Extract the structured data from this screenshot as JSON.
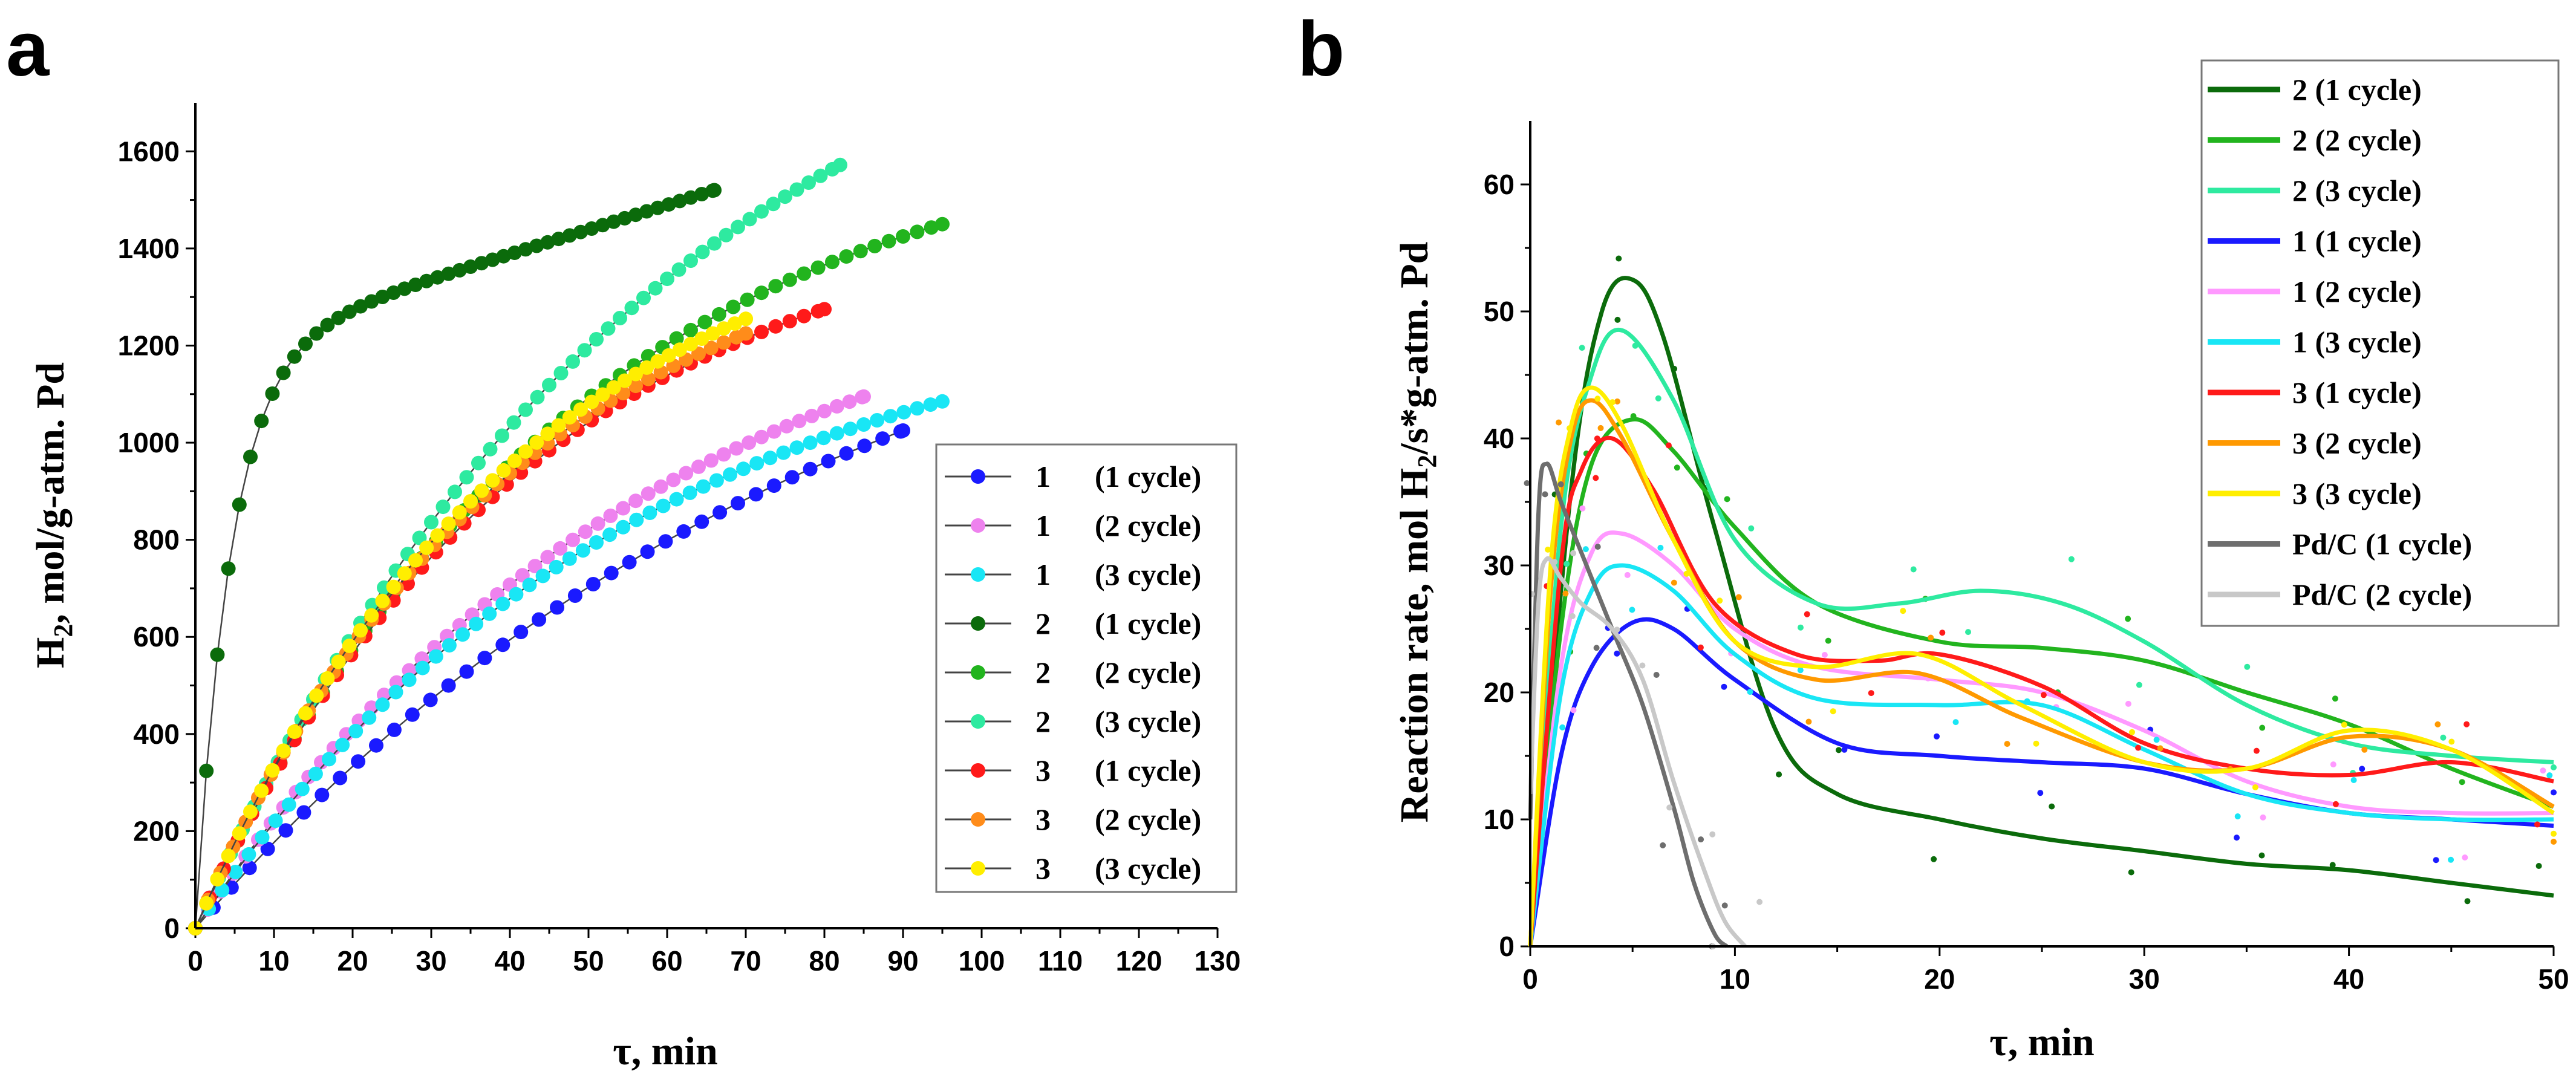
{
  "chart_data": [
    {
      "panel": "a",
      "type": "scatter",
      "xlabel": "τ, min",
      "ylabel_main": "H",
      "ylabel_sub": "2",
      "ylabel_rest": ", mol/g-atm. Pd",
      "xlim": [
        0,
        130
      ],
      "ylim": [
        0,
        1700
      ],
      "xticks": [
        0,
        10,
        20,
        30,
        40,
        50,
        60,
        70,
        80,
        90,
        100,
        110,
        120,
        130
      ],
      "yticks": [
        0,
        200,
        400,
        600,
        800,
        1000,
        1200,
        1400,
        1600
      ],
      "series": [
        {
          "name": "1",
          "cycle": "(1 cycle)",
          "color": "#1a1aff",
          "end": 90,
          "max": 1025,
          "k": 1.1,
          "step": 2.3
        },
        {
          "name": "1",
          "cycle": "(2 cycle)",
          "color": "#ee82ee",
          "end": 85,
          "max": 1095,
          "k": 1.45,
          "step": 1.6
        },
        {
          "name": "1",
          "cycle": "(3 cycle)",
          "color": "#19e6f5",
          "end": 95,
          "max": 1085,
          "k": 1.7,
          "step": 1.7
        },
        {
          "name": "2",
          "cycle": "(1 cycle)",
          "color": "#0b6b0b",
          "end": 66,
          "max": 1520,
          "k": 0.0,
          "step": 1.4
        },
        {
          "name": "2",
          "cycle": "(2 cycle)",
          "color": "#22b41e",
          "end": 95,
          "max": 1450,
          "k": 2.0,
          "step": 1.8
        },
        {
          "name": "2",
          "cycle": "(3 cycle)",
          "color": "#2eeaa0",
          "end": 82,
          "max": 1572,
          "k": 1.4,
          "step": 1.5
        },
        {
          "name": "3",
          "cycle": "(1 cycle)",
          "color": "#ff1a1a",
          "end": 80,
          "max": 1275,
          "k": 1.9,
          "step": 1.8
        },
        {
          "name": "3",
          "cycle": "(2 cycle)",
          "color": "#ff8c1a",
          "end": 70,
          "max": 1225,
          "k": 1.75,
          "step": 1.6
        },
        {
          "name": "3",
          "cycle": "(3 cycle)",
          "color": "#ffee00",
          "end": 70,
          "max": 1255,
          "k": 1.7,
          "step": 1.4
        }
      ],
      "legend_position": "bottom-right"
    },
    {
      "panel": "b",
      "type": "line",
      "xlabel": "τ, min",
      "ylabel_main": "Reaction rate, mol H",
      "ylabel_sub": "2",
      "ylabel_rest": "/s*g-atm. Pd",
      "xlim": [
        0,
        50
      ],
      "ylim": [
        0,
        65
      ],
      "xticks": [
        0,
        10,
        20,
        30,
        40,
        50
      ],
      "yticks": [
        0,
        10,
        20,
        30,
        40,
        50,
        60
      ],
      "series": [
        {
          "name": "2 (1 cycle)",
          "color": "#0b6b0b",
          "x": [
            0,
            2,
            3.5,
            5,
            6.5,
            9,
            12,
            15,
            20,
            25,
            30,
            35,
            40,
            45,
            50
          ],
          "y": [
            0,
            36,
            50,
            52.5,
            48,
            33,
            17,
            12,
            10,
            8.5,
            7.5,
            6.5,
            6,
            5,
            4
          ]
        },
        {
          "name": "2 (2 cycle)",
          "color": "#22b41e",
          "x": [
            0,
            1.5,
            3,
            5,
            7,
            10,
            14,
            20,
            25,
            30,
            35,
            40,
            45,
            50
          ],
          "y": [
            0,
            25,
            38,
            41.5,
            39,
            33,
            27,
            24,
            23.5,
            22.5,
            20,
            17.5,
            14,
            11
          ]
        },
        {
          "name": "2 (3 cycle)",
          "color": "#2eeaa0",
          "x": [
            0,
            1.5,
            3,
            4.5,
            7,
            10,
            14,
            18,
            22,
            26,
            30,
            35,
            40,
            45,
            50
          ],
          "y": [
            0,
            33,
            45,
            48.5,
            43,
            32,
            27,
            27,
            28,
            27,
            24,
            19,
            16,
            15,
            14.5
          ]
        },
        {
          "name": "1 (1 cycle)",
          "color": "#1a1aff",
          "x": [
            0,
            1.5,
            3,
            5,
            7,
            10,
            15,
            20,
            25,
            30,
            35,
            40,
            45,
            50
          ],
          "y": [
            0,
            15,
            22,
            25.5,
            25,
            21,
            16,
            15,
            14.5,
            14,
            12,
            10.5,
            10,
            9.5
          ]
        },
        {
          "name": "1 (2 cycle)",
          "color": "#ff99ff",
          "x": [
            0,
            1.5,
            3,
            4.5,
            7,
            10,
            14,
            20,
            25,
            30,
            35,
            40,
            45,
            50
          ],
          "y": [
            0,
            22,
            31,
            32.5,
            30,
            25,
            22,
            21,
            20,
            17,
            13,
            11,
            10.5,
            10.5
          ]
        },
        {
          "name": "1 (3 cycle)",
          "color": "#19e6f5",
          "x": [
            0,
            1.5,
            3,
            4.5,
            7,
            10,
            14,
            20,
            25,
            30,
            35,
            40,
            45,
            50
          ],
          "y": [
            0,
            20,
            28,
            30,
            28,
            23,
            19.5,
            19,
            19,
            15.5,
            12,
            10.5,
            10,
            10
          ]
        },
        {
          "name": "3 (1 cycle)",
          "color": "#ff1a1a",
          "x": [
            0,
            1.5,
            2.5,
            4,
            6,
            9,
            13,
            17,
            20,
            25,
            30,
            35,
            40,
            45,
            50
          ],
          "y": [
            0,
            30,
            37.5,
            40,
            36,
            27,
            23,
            22.5,
            23,
            20.5,
            16,
            14,
            13.5,
            14.5,
            13
          ]
        },
        {
          "name": "3 (2 cycle)",
          "color": "#ff9900",
          "x": [
            0,
            1,
            2,
            3,
            4.5,
            7,
            10,
            14,
            19,
            24,
            30,
            35,
            40,
            45,
            50
          ],
          "y": [
            0,
            28,
            40,
            43,
            40,
            32,
            24,
            21,
            21.5,
            18,
            14.5,
            14,
            16.5,
            15.5,
            11
          ]
        },
        {
          "name": "3 (3 cycle)",
          "color": "#ffee00",
          "x": [
            0,
            1,
            2,
            3,
            4.5,
            7,
            10,
            14,
            19,
            24,
            30,
            35,
            40,
            45,
            50
          ],
          "y": [
            0,
            30,
            41,
            44,
            41,
            32,
            24,
            22,
            23,
            19,
            14.5,
            14,
            17,
            15.5,
            10.5
          ]
        },
        {
          "name": "Pd/C (1 cycle)",
          "color": "#6e6e6e",
          "x": [
            0,
            0.4,
            0.8,
            1.5,
            2.5,
            4,
            5.5,
            7,
            8,
            9,
            9.6
          ],
          "y": [
            10,
            34,
            38,
            35,
            31,
            25,
            19,
            11,
            5,
            1,
            0
          ]
        },
        {
          "name": "Pd/C (2 cycle)",
          "color": "#c8c8c8",
          "x": [
            0,
            0.4,
            0.8,
            1.5,
            2.5,
            4,
            5.5,
            7,
            8.5,
            9.5,
            10.5
          ],
          "y": [
            12,
            27,
            30.5,
            29,
            27,
            25,
            21,
            13,
            6,
            2,
            0
          ]
        }
      ],
      "legend_position": "top-right"
    }
  ]
}
